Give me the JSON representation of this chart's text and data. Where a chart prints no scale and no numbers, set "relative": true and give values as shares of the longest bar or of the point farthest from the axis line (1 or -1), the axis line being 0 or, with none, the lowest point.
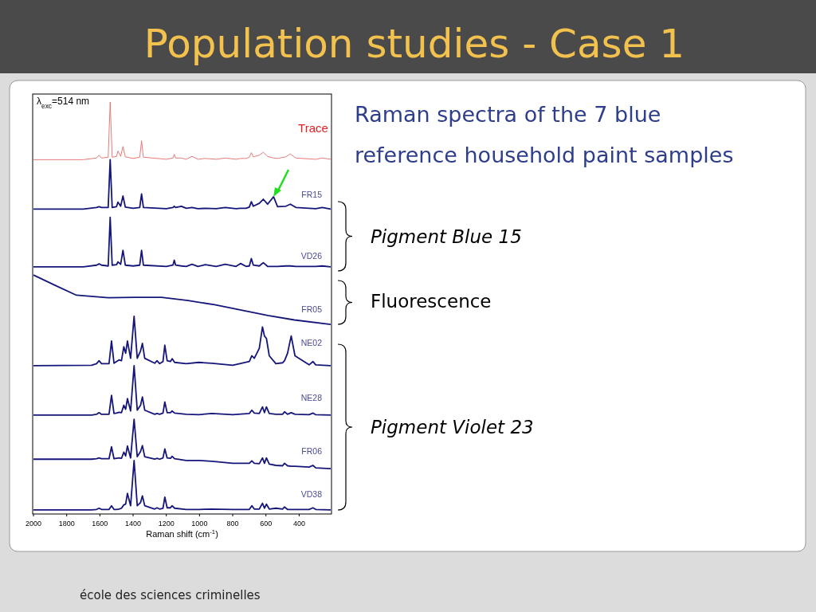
{
  "chart_data": {
    "type": "line",
    "title": "Population studies - Case 1",
    "subtitle": "Raman spectra of the 7 blue reference household paint samples",
    "xlabel": "Raman shift (cm$^{-1}$)",
    "annotations": [
      "λ$_{exc}$=514 nm",
      "Pigment Blue 15",
      "Fluorescence",
      "Pigment Violet 23",
      "école des sciences criminelles"
    ],
    "relative": true,
    "xlim": [
      2000,
      210
    ],
    "xticks": [
      2000,
      1800,
      1600,
      1400,
      1200,
      1000,
      800,
      600,
      400
    ],
    "tick_labels": "x",
    "legend": false,
    "series": [
      {
        "name": "Trace",
        "color": "#e87a7a",
        "x": [
          2000,
          1700,
          1620,
          1605,
          1590,
          1550,
          1538,
          1526,
          1500,
          1491,
          1475,
          1461,
          1447,
          1400,
          1360,
          1349,
          1338,
          1200,
          1160,
          1152,
          1144,
          1109,
          1080,
          1045,
          1010,
          965,
          900,
          845,
          780,
          753,
          720,
          700,
          688,
          676,
          640,
          616,
          590,
          554,
          530,
          480,
          453,
          420,
          300,
          261,
          210
        ],
        "values": [
          0.86,
          0.86,
          0.864,
          0.871,
          0.864,
          0.866,
          1,
          0.866,
          0.868,
          0.881,
          0.868,
          0.892,
          0.867,
          0.863,
          0.866,
          0.906,
          0.866,
          0.861,
          0.864,
          0.873,
          0.864,
          0.864,
          0.861,
          0.868,
          0.861,
          0.863,
          0.861,
          0.864,
          0.861,
          0.863,
          0.863,
          0.866,
          0.877,
          0.867,
          0.871,
          0.878,
          0.868,
          0.864,
          0.863,
          0.867,
          0.874,
          0.864,
          0.861,
          0.864,
          0.861
        ]
      },
      {
        "name": "FR15",
        "color": "#16167a",
        "x": [
          2000,
          1700,
          1620,
          1605,
          1590,
          1550,
          1538,
          1526,
          1500,
          1491,
          1475,
          1461,
          1447,
          1400,
          1360,
          1349,
          1338,
          1200,
          1160,
          1152,
          1144,
          1109,
          1080,
          1045,
          1010,
          965,
          900,
          845,
          780,
          753,
          720,
          700,
          688,
          676,
          640,
          616,
          590,
          554,
          530,
          480,
          453,
          420,
          300,
          261,
          210
        ],
        "values": [
          0.74,
          0.74,
          0.744,
          0.746,
          0.744,
          0.744,
          0.86,
          0.744,
          0.746,
          0.757,
          0.747,
          0.772,
          0.745,
          0.742,
          0.744,
          0.777,
          0.744,
          0.741,
          0.744,
          0.747,
          0.744,
          0.747,
          0.742,
          0.744,
          0.741,
          0.742,
          0.741,
          0.744,
          0.741,
          0.742,
          0.742,
          0.745,
          0.758,
          0.747,
          0.754,
          0.764,
          0.752,
          0.77,
          0.746,
          0.747,
          0.752,
          0.744,
          0.741,
          0.744,
          0.74
        ]
      },
      {
        "name": "VD26",
        "color": "#16167a",
        "x": [
          2000,
          1700,
          1620,
          1605,
          1590,
          1550,
          1538,
          1526,
          1500,
          1491,
          1475,
          1461,
          1447,
          1400,
          1360,
          1349,
          1338,
          1200,
          1160,
          1152,
          1144,
          1109,
          1080,
          1045,
          1010,
          965,
          900,
          845,
          780,
          753,
          720,
          700,
          688,
          676,
          640,
          616,
          590,
          554,
          530,
          480,
          453,
          420,
          300,
          261,
          210
        ],
        "values": [
          0.6,
          0.6,
          0.604,
          0.607,
          0.604,
          0.602,
          0.72,
          0.604,
          0.605,
          0.612,
          0.606,
          0.64,
          0.604,
          0.602,
          0.604,
          0.64,
          0.604,
          0.601,
          0.604,
          0.616,
          0.604,
          0.602,
          0.601,
          0.606,
          0.601,
          0.605,
          0.601,
          0.606,
          0.601,
          0.608,
          0.601,
          0.602,
          0.62,
          0.604,
          0.602,
          0.61,
          0.601,
          0.601,
          0.601,
          0.602,
          0.602,
          0.601,
          0.601,
          0.602,
          0.6
        ]
      },
      {
        "name": "FR05",
        "color": "#16167a",
        "x": [
          2000,
          1869,
          1741,
          1549,
          1389,
          1229,
          1069,
          909,
          749,
          589,
          429,
          210
        ],
        "values": [
          0.58,
          0.555,
          0.531,
          0.525,
          0.526,
          0.526,
          0.518,
          0.508,
          0.495,
          0.482,
          0.471,
          0.46
        ]
      },
      {
        "name": "NE02",
        "color": "#16167a",
        "x": [
          2000,
          1650,
          1620,
          1605,
          1590,
          1545,
          1530,
          1515,
          1500,
          1485,
          1470,
          1456,
          1445,
          1434,
          1415,
          1394,
          1375,
          1355,
          1344,
          1330,
          1270,
          1256,
          1240,
          1220,
          1209,
          1195,
          1175,
          1165,
          1150,
          1080,
          1005,
          925,
          800,
          700,
          685,
          670,
          640,
          621,
          609,
          597,
          580,
          540,
          500,
          488,
          470,
          448,
          425,
          340,
          317,
          300,
          210
        ],
        "values": [
          0.36,
          0.361,
          0.365,
          0.372,
          0.365,
          0.365,
          0.42,
          0.366,
          0.37,
          0.374,
          0.372,
          0.406,
          0.39,
          0.42,
          0.378,
          0.48,
          0.378,
          0.396,
          0.414,
          0.378,
          0.366,
          0.372,
          0.365,
          0.37,
          0.41,
          0.372,
          0.37,
          0.377,
          0.368,
          0.365,
          0.368,
          0.366,
          0.361,
          0.37,
          0.384,
          0.378,
          0.402,
          0.454,
          0.432,
          0.426,
          0.384,
          0.365,
          0.367,
          0.372,
          0.39,
          0.432,
          0.384,
          0.362,
          0.37,
          0.362,
          0.36
        ]
      },
      {
        "name": "NE28",
        "color": "#16167a",
        "x": [
          2000,
          1650,
          1620,
          1605,
          1590,
          1545,
          1530,
          1515,
          1500,
          1485,
          1470,
          1456,
          1445,
          1434,
          1415,
          1394,
          1375,
          1355,
          1344,
          1330,
          1270,
          1256,
          1240,
          1220,
          1209,
          1195,
          1175,
          1165,
          1150,
          1080,
          1005,
          925,
          800,
          700,
          685,
          670,
          640,
          621,
          609,
          597,
          580,
          540,
          500,
          488,
          470,
          448,
          425,
          340,
          317,
          300,
          210
        ],
        "values": [
          0.24,
          0.24,
          0.242,
          0.246,
          0.242,
          0.242,
          0.288,
          0.244,
          0.245,
          0.247,
          0.246,
          0.264,
          0.254,
          0.28,
          0.25,
          0.36,
          0.252,
          0.264,
          0.284,
          0.252,
          0.242,
          0.244,
          0.242,
          0.245,
          0.272,
          0.246,
          0.246,
          0.25,
          0.245,
          0.242,
          0.241,
          0.244,
          0.241,
          0.244,
          0.252,
          0.245,
          0.244,
          0.26,
          0.246,
          0.26,
          0.244,
          0.242,
          0.242,
          0.248,
          0.242,
          0.246,
          0.242,
          0.241,
          0.245,
          0.241,
          0.24
        ]
      },
      {
        "name": "FR06",
        "color": "#16167a",
        "x": [
          2000,
          1650,
          1620,
          1605,
          1590,
          1545,
          1530,
          1515,
          1500,
          1485,
          1470,
          1456,
          1445,
          1434,
          1415,
          1394,
          1375,
          1355,
          1344,
          1330,
          1270,
          1256,
          1240,
          1220,
          1209,
          1195,
          1175,
          1165,
          1150,
          1080,
          1005,
          925,
          800,
          700,
          685,
          670,
          640,
          621,
          609,
          597,
          580,
          540,
          500,
          488,
          470,
          448,
          425,
          340,
          317,
          300,
          210
        ],
        "values": [
          0.133,
          0.133,
          0.134,
          0.136,
          0.134,
          0.134,
          0.163,
          0.134,
          0.135,
          0.136,
          0.135,
          0.15,
          0.141,
          0.165,
          0.136,
          0.23,
          0.139,
          0.152,
          0.166,
          0.139,
          0.133,
          0.135,
          0.133,
          0.136,
          0.158,
          0.136,
          0.135,
          0.14,
          0.134,
          0.13,
          0.13,
          0.128,
          0.123,
          0.123,
          0.129,
          0.123,
          0.122,
          0.136,
          0.123,
          0.136,
          0.121,
          0.118,
          0.117,
          0.123,
          0.117,
          0.116,
          0.116,
          0.114,
          0.118,
          0.112,
          0.11
        ]
      },
      {
        "name": "VD38",
        "color": "#16167a",
        "x": [
          2000,
          1650,
          1620,
          1605,
          1590,
          1545,
          1530,
          1515,
          1500,
          1485,
          1470,
          1456,
          1445,
          1434,
          1415,
          1394,
          1375,
          1355,
          1344,
          1330,
          1270,
          1256,
          1240,
          1220,
          1209,
          1195,
          1175,
          1165,
          1150,
          1080,
          1005,
          925,
          800,
          700,
          685,
          670,
          640,
          621,
          609,
          597,
          580,
          540,
          500,
          488,
          470,
          448,
          425,
          340,
          317,
          300,
          210
        ],
        "values": [
          0.01,
          0.01,
          0.011,
          0.014,
          0.011,
          0.011,
          0.02,
          0.011,
          0.011,
          0.012,
          0.014,
          0.022,
          0.024,
          0.05,
          0.02,
          0.13,
          0.02,
          0.028,
          0.044,
          0.02,
          0.012,
          0.015,
          0.012,
          0.014,
          0.041,
          0.015,
          0.015,
          0.02,
          0.014,
          0.011,
          0.011,
          0.012,
          0.011,
          0.011,
          0.02,
          0.012,
          0.012,
          0.026,
          0.014,
          0.024,
          0.012,
          0.014,
          0.012,
          0.017,
          0.011,
          0.011,
          0.011,
          0.011,
          0.015,
          0.011,
          0.01
        ]
      }
    ]
  }
}
